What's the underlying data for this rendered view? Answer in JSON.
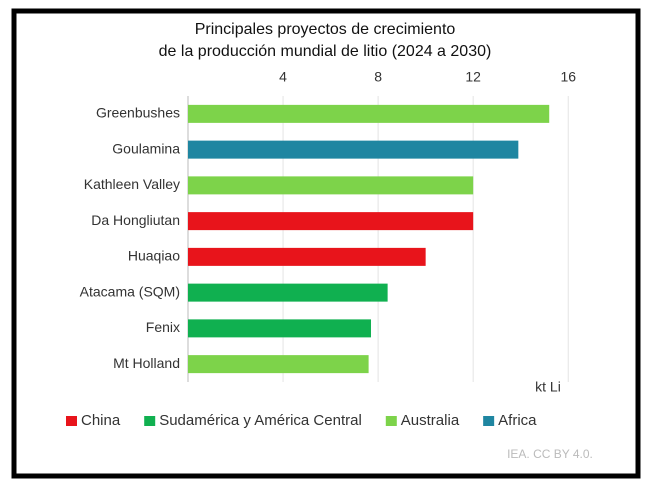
{
  "chart_data": {
    "type": "bar",
    "orientation": "horizontal",
    "title": "Principales proyectos de crecimiento",
    "subtitle": "de la producción mundial de litio (2024 a 2030)",
    "x_label": "kt Li",
    "source": "IEA. CC BY 4.0.",
    "categories": [
      "Greenbushes",
      "Goulamina",
      "Kathleen Valley",
      "Da Hongliutan",
      "Huaqiao",
      "Atacama (SQM)",
      "Fenix",
      "Mt Holland"
    ],
    "series": [
      {
        "name": "China",
        "color": "#e8141b",
        "values": [
          null,
          null,
          null,
          12.0,
          10.0,
          null,
          null,
          null
        ]
      },
      {
        "name": "Sudamérica y América Central",
        "color": "#10b050",
        "values": [
          null,
          null,
          null,
          null,
          null,
          8.4,
          7.7,
          null
        ]
      },
      {
        "name": "Australia",
        "color": "#7dd34a",
        "values": [
          15.2,
          null,
          12.0,
          null,
          null,
          null,
          null,
          7.6
        ]
      },
      {
        "name": "Africa",
        "color": "#1f86a1",
        "values": [
          null,
          13.9,
          null,
          null,
          null,
          null,
          null,
          null
        ]
      }
    ],
    "xlim": [
      0,
      17
    ],
    "xticks": [
      4,
      8,
      12,
      16
    ],
    "grid": true,
    "legend": "bottom"
  }
}
